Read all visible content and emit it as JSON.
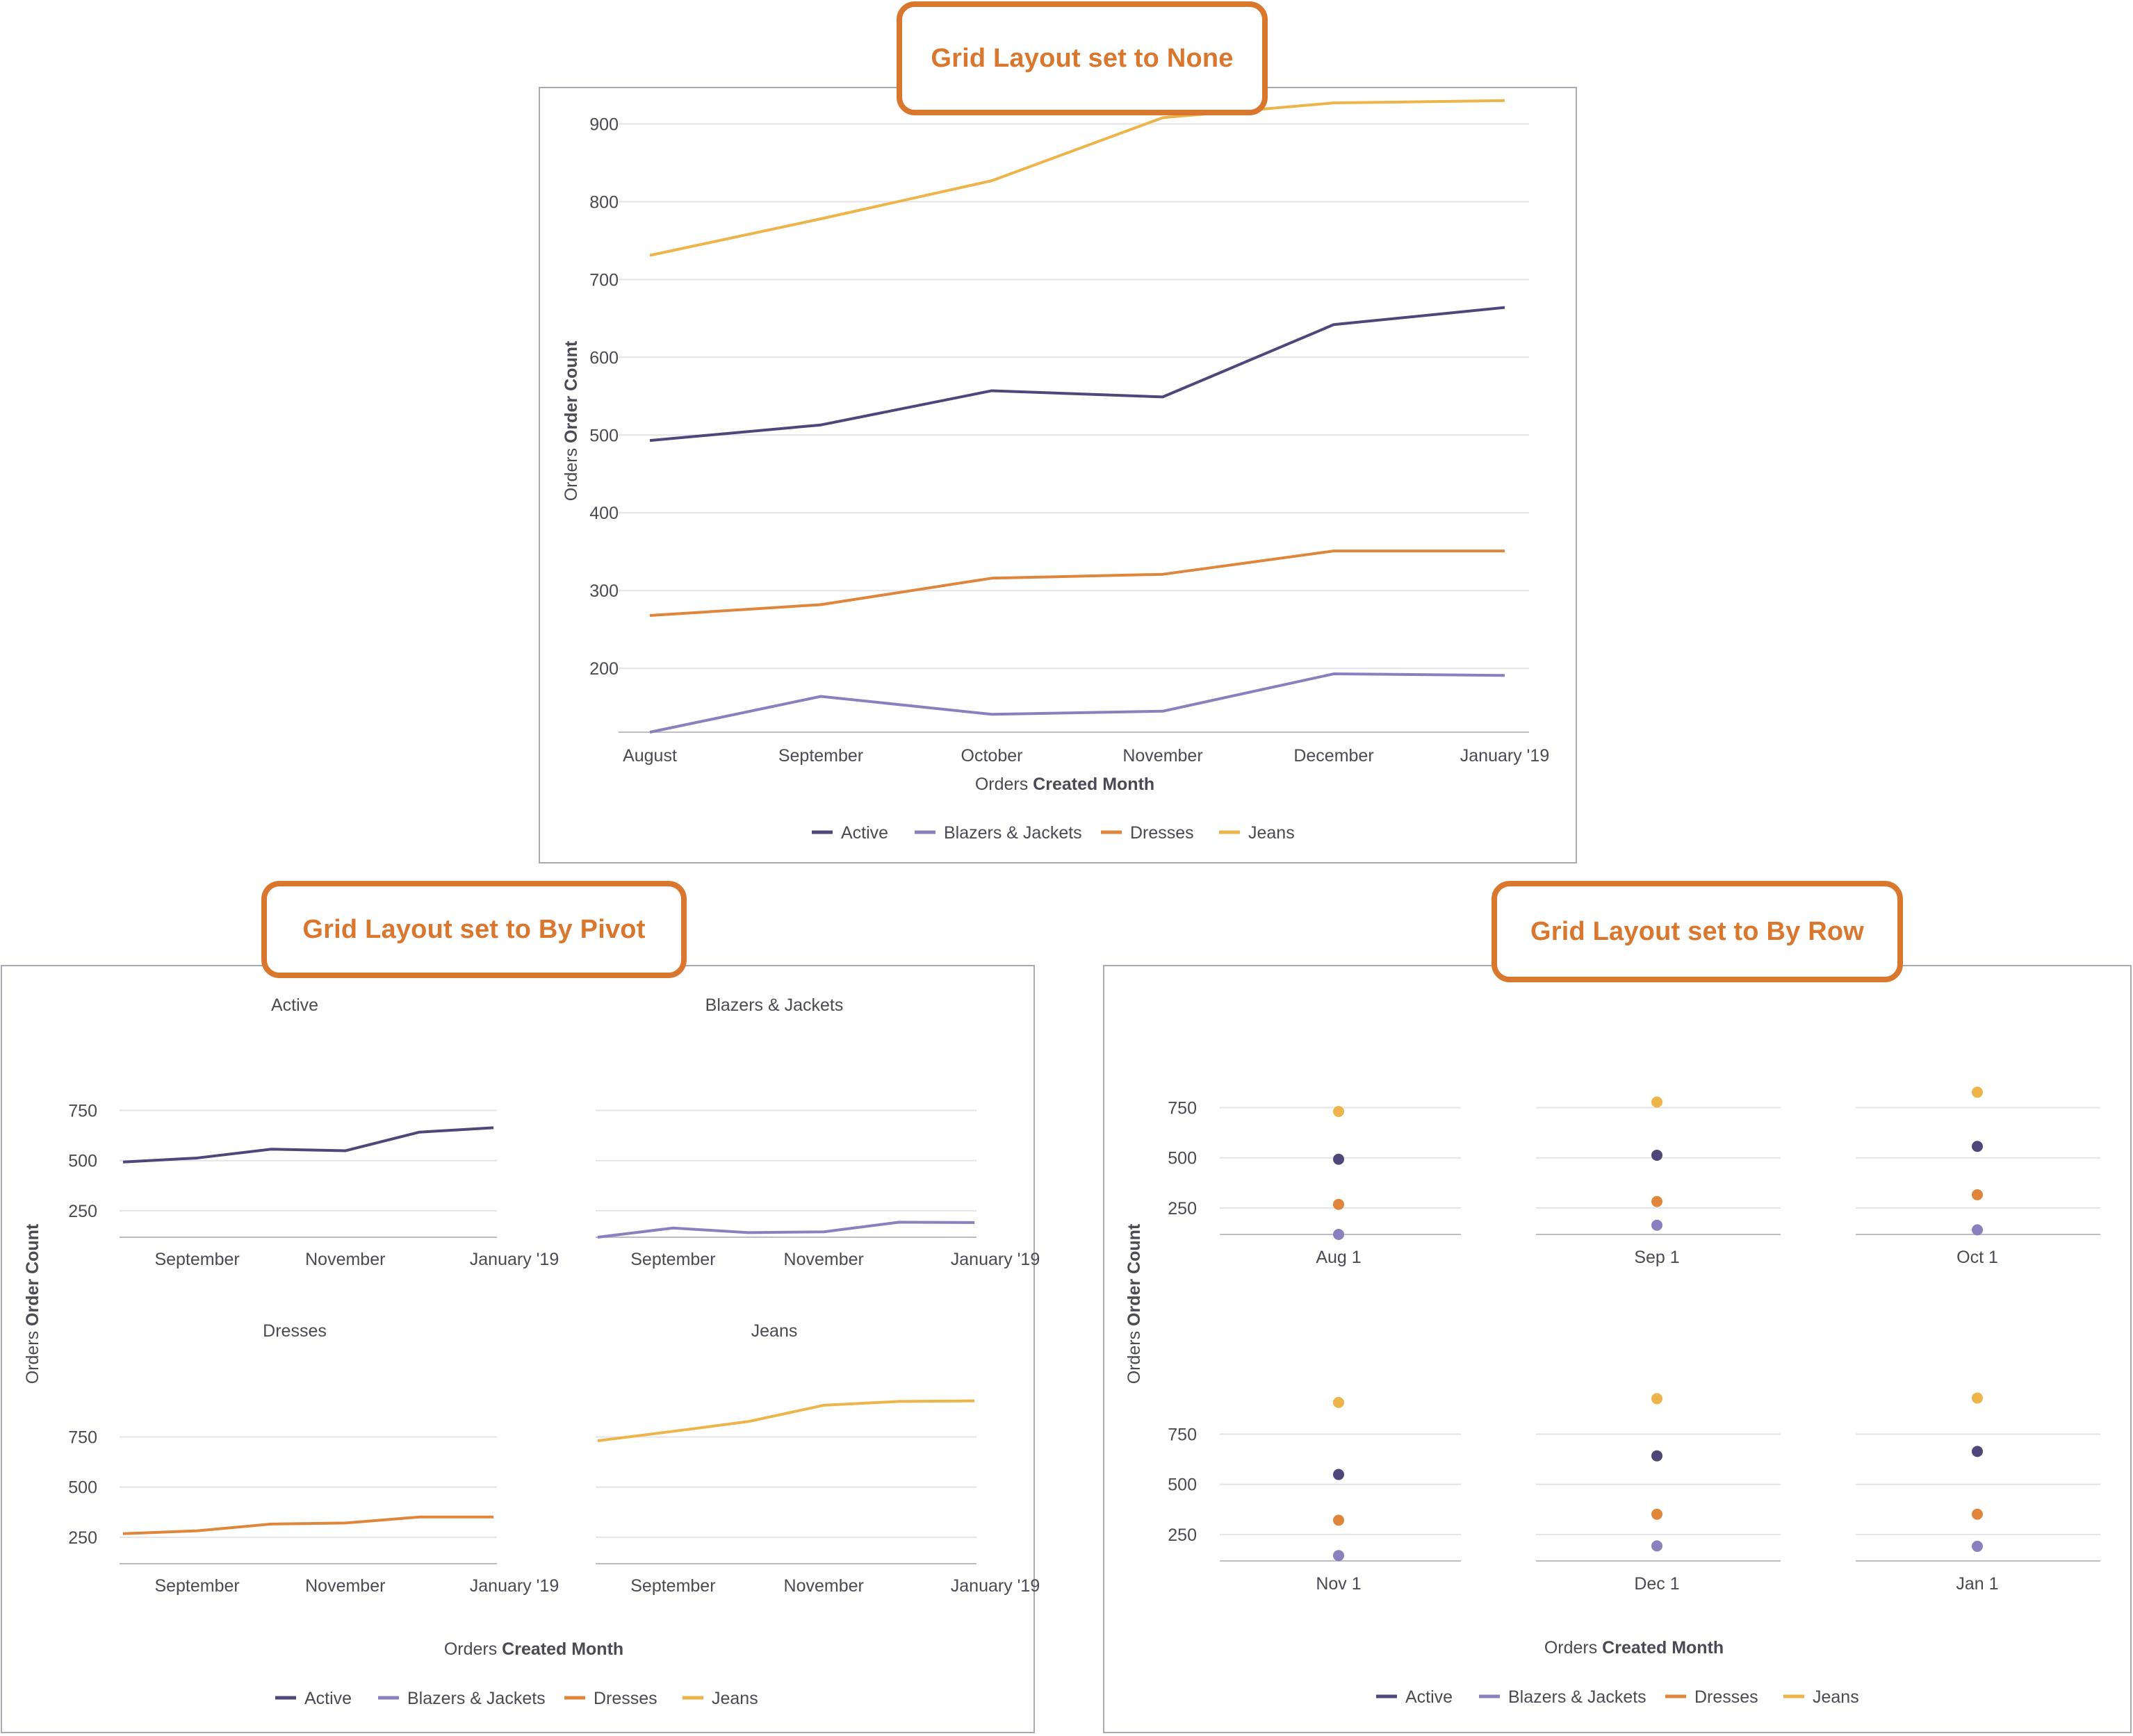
{
  "colors": {
    "Active": "#4F4679",
    "Blazers & Jackets": "#8A80BE",
    "Dresses": "#E0853C",
    "Jeans": "#EDB44A",
    "callout": "#D9772E"
  },
  "callouts": {
    "none": "Grid Layout set to None",
    "pivot": "Grid Layout set to By Pivot",
    "row": "Grid Layout set to By Row"
  },
  "chart_data": [
    {
      "id": "none",
      "type": "line",
      "title": "",
      "xlabel_prefix": "Orders",
      "xlabel_bold": "Created Month",
      "ylabel_prefix": "Orders",
      "ylabel_bold": "Order Count",
      "categories": [
        "August",
        "September",
        "October",
        "November",
        "December",
        "January '19"
      ],
      "ylim": [
        118,
        970
      ],
      "yticks": [
        200,
        300,
        400,
        500,
        600,
        700,
        800,
        900
      ],
      "series": [
        {
          "name": "Active",
          "values": [
            493,
            513,
            557,
            549,
            642,
            664
          ]
        },
        {
          "name": "Blazers & Jackets",
          "values": [
            118,
            164,
            141,
            145,
            193,
            191
          ]
        },
        {
          "name": "Dresses",
          "values": [
            268,
            282,
            316,
            321,
            351,
            351
          ]
        },
        {
          "name": "Jeans",
          "values": [
            731,
            778,
            827,
            908,
            927,
            930
          ]
        }
      ],
      "legend": [
        "Active",
        "Blazers & Jackets",
        "Dresses",
        "Jeans"
      ],
      "legend_position": "bottom",
      "grid": true
    },
    {
      "id": "pivot",
      "type": "line",
      "layout": "small-multiples-by-pivot",
      "xlabel_prefix": "Orders",
      "xlabel_bold": "Created Month",
      "ylabel_prefix": "Orders",
      "ylabel_bold": "Order Count",
      "months": [
        "August",
        "September",
        "October",
        "November",
        "December",
        "January '19"
      ],
      "tick_labels": [
        "September",
        "November",
        "January '19"
      ],
      "ylim": [
        118,
        970
      ],
      "yticks": [
        250,
        500,
        750
      ],
      "panels": [
        {
          "title": "Active",
          "series": "Active",
          "values": [
            493,
            513,
            557,
            549,
            642,
            664
          ]
        },
        {
          "title": "Blazers & Jackets",
          "series": "Blazers & Jackets",
          "values": [
            118,
            164,
            141,
            145,
            193,
            191
          ]
        },
        {
          "title": "Dresses",
          "series": "Dresses",
          "values": [
            268,
            282,
            316,
            321,
            351,
            351
          ]
        },
        {
          "title": "Jeans",
          "series": "Jeans",
          "values": [
            731,
            778,
            827,
            908,
            927,
            930
          ]
        }
      ],
      "legend": [
        "Active",
        "Blazers & Jackets",
        "Dresses",
        "Jeans"
      ],
      "legend_position": "bottom",
      "grid": true
    },
    {
      "id": "row",
      "type": "scatter",
      "layout": "small-multiples-by-row",
      "xlabel_prefix": "Orders",
      "xlabel_bold": "Created Month",
      "ylabel_prefix": "Orders",
      "ylabel_bold": "Order Count",
      "ylim": [
        118,
        970
      ],
      "yticks": [
        250,
        500,
        750
      ],
      "panels": [
        {
          "label": "Aug 1",
          "values": {
            "Active": 493,
            "Blazers & Jackets": 118,
            "Dresses": 268,
            "Jeans": 731
          }
        },
        {
          "label": "Sep 1",
          "values": {
            "Active": 513,
            "Blazers & Jackets": 164,
            "Dresses": 282,
            "Jeans": 778
          }
        },
        {
          "label": "Oct 1",
          "values": {
            "Active": 557,
            "Blazers & Jackets": 141,
            "Dresses": 316,
            "Jeans": 827
          }
        },
        {
          "label": "Nov 1",
          "values": {
            "Active": 549,
            "Blazers & Jackets": 145,
            "Dresses": 321,
            "Jeans": 908
          }
        },
        {
          "label": "Dec 1",
          "values": {
            "Active": 642,
            "Blazers & Jackets": 193,
            "Dresses": 351,
            "Jeans": 927
          }
        },
        {
          "label": "Jan 1",
          "values": {
            "Active": 664,
            "Blazers & Jackets": 191,
            "Dresses": 351,
            "Jeans": 930
          }
        }
      ],
      "legend": [
        "Active",
        "Blazers & Jackets",
        "Dresses",
        "Jeans"
      ],
      "legend_position": "bottom",
      "grid": true
    }
  ]
}
